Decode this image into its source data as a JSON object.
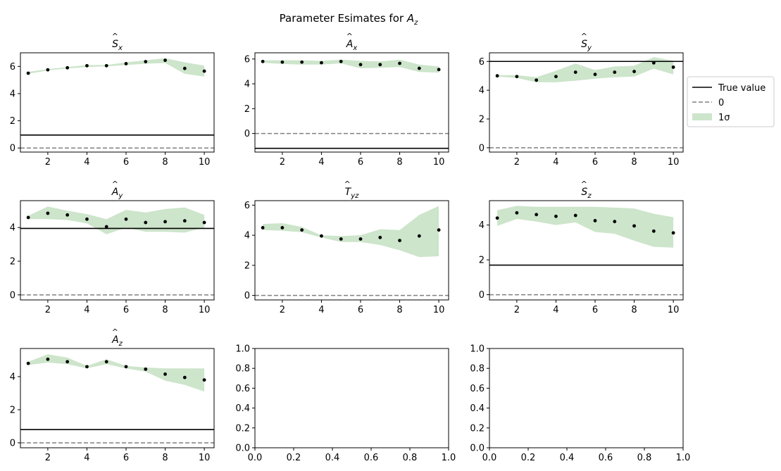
{
  "figure": {
    "title": "Parameter Esimates for Âz",
    "title_plain": "Parameter Esimates for ",
    "title_hat": "A",
    "title_sub": "z"
  },
  "legend": {
    "placement": "right",
    "entries": [
      {
        "label": "True value",
        "style": "solid",
        "color": "#000000"
      },
      {
        "label": "0",
        "style": "dashed",
        "color": "#808080"
      },
      {
        "label": "1σ",
        "style": "band",
        "color": "#cde5cb"
      }
    ]
  },
  "chart_data": [
    {
      "type": "scatter",
      "title": "Ŝx",
      "sym": "S",
      "sub": "x",
      "x": [
        1,
        2,
        3,
        4,
        5,
        6,
        7,
        8,
        9,
        10
      ],
      "y": [
        5.5,
        5.75,
        5.9,
        6.05,
        6.05,
        6.2,
        6.35,
        6.45,
        5.85,
        5.65
      ],
      "band_lower": [
        5.45,
        5.7,
        5.85,
        5.95,
        6.0,
        6.1,
        6.2,
        6.25,
        5.45,
        5.25
      ],
      "band_upper": [
        5.6,
        5.8,
        5.95,
        6.1,
        6.1,
        6.3,
        6.45,
        6.6,
        6.3,
        6.05
      ],
      "true_value": 0.95,
      "ylim": [
        -0.3,
        7.0
      ],
      "yticks": [
        0,
        2,
        4,
        6
      ],
      "xlim": [
        0.6,
        10.5
      ],
      "xticks": [
        2,
        4,
        6,
        8,
        10
      ]
    },
    {
      "type": "scatter",
      "title": "Âx",
      "sym": "A",
      "sub": "x",
      "x": [
        1,
        2,
        3,
        4,
        5,
        6,
        7,
        8,
        9,
        10
      ],
      "y": [
        5.8,
        5.75,
        5.75,
        5.7,
        5.8,
        5.55,
        5.55,
        5.65,
        5.25,
        5.15
      ],
      "band_lower": [
        5.7,
        5.6,
        5.55,
        5.55,
        5.65,
        5.25,
        5.3,
        5.35,
        4.95,
        4.9
      ],
      "band_upper": [
        5.9,
        5.9,
        5.9,
        5.85,
        5.95,
        5.85,
        5.8,
        5.95,
        5.55,
        5.4
      ],
      "true_value": -1.2,
      "ylim": [
        -1.5,
        6.5
      ],
      "yticks": [
        0,
        2,
        4,
        6
      ],
      "xlim": [
        0.6,
        10.5
      ],
      "xticks": [
        2,
        4,
        6,
        8,
        10
      ]
    },
    {
      "type": "scatter",
      "title": "Ŝy",
      "sym": "S",
      "sub": "y",
      "x": [
        1,
        2,
        3,
        4,
        5,
        6,
        7,
        8,
        9,
        10
      ],
      "y": [
        5.0,
        4.95,
        4.7,
        4.95,
        5.25,
        5.1,
        5.25,
        5.3,
        5.9,
        5.6
      ],
      "band_lower": [
        4.95,
        4.85,
        4.55,
        4.55,
        4.65,
        4.8,
        4.9,
        4.95,
        5.5,
        5.1
      ],
      "band_upper": [
        5.05,
        5.05,
        4.9,
        5.35,
        5.85,
        5.4,
        5.65,
        5.7,
        6.3,
        6.05
      ],
      "true_value": 6.0,
      "ylim": [
        -0.3,
        6.6
      ],
      "yticks": [
        0,
        2,
        4,
        6
      ],
      "xlim": [
        0.6,
        10.5
      ],
      "xticks": [
        2,
        4,
        6,
        8,
        10
      ]
    },
    {
      "type": "scatter",
      "title": "Ây",
      "sym": "A",
      "sub": "y",
      "x": [
        1,
        2,
        3,
        4,
        5,
        6,
        7,
        8,
        9,
        10
      ],
      "y": [
        4.6,
        4.85,
        4.75,
        4.5,
        4.05,
        4.5,
        4.3,
        4.35,
        4.4,
        4.3
      ],
      "band_lower": [
        4.5,
        4.5,
        4.45,
        4.25,
        3.6,
        4.0,
        3.75,
        3.75,
        3.7,
        4.0
      ],
      "band_upper": [
        4.7,
        5.25,
        5.0,
        4.8,
        4.5,
        5.05,
        4.9,
        5.1,
        5.2,
        4.75
      ],
      "true_value": 3.95,
      "ylim": [
        -0.3,
        5.6
      ],
      "yticks": [
        0,
        2,
        4
      ],
      "xlim": [
        0.6,
        10.5
      ],
      "xticks": [
        2,
        4,
        6,
        8,
        10
      ]
    },
    {
      "type": "scatter",
      "title": "T̂yz",
      "sym": "T",
      "sub": "yz",
      "x": [
        1,
        2,
        3,
        4,
        5,
        6,
        7,
        8,
        9,
        10
      ],
      "y": [
        4.5,
        4.5,
        4.35,
        3.95,
        3.75,
        3.75,
        3.85,
        3.65,
        3.95,
        4.35
      ],
      "band_lower": [
        4.35,
        4.3,
        4.2,
        3.85,
        3.55,
        3.55,
        3.35,
        3.0,
        2.55,
        2.6
      ],
      "band_upper": [
        4.75,
        4.8,
        4.55,
        4.0,
        3.95,
        4.0,
        4.4,
        4.35,
        5.35,
        5.95
      ],
      "true_value": null,
      "ylim": [
        -0.3,
        6.3
      ],
      "yticks": [
        0,
        2,
        4,
        6
      ],
      "xlim": [
        0.6,
        10.5
      ],
      "xticks": [
        2,
        4,
        6,
        8,
        10
      ]
    },
    {
      "type": "scatter",
      "title": "Ŝz",
      "sym": "S",
      "sub": "z",
      "x": [
        1,
        2,
        3,
        4,
        5,
        6,
        7,
        8,
        9,
        10
      ],
      "y": [
        4.4,
        4.7,
        4.6,
        4.5,
        4.55,
        4.25,
        4.2,
        3.95,
        3.65,
        3.55
      ],
      "band_lower": [
        3.95,
        4.35,
        4.2,
        4.0,
        4.15,
        3.6,
        3.5,
        3.1,
        2.75,
        2.7
      ],
      "band_upper": [
        4.85,
        5.1,
        5.05,
        5.05,
        5.05,
        5.05,
        5.0,
        4.95,
        4.65,
        4.45
      ],
      "true_value": 1.7,
      "ylim": [
        -0.3,
        5.4
      ],
      "yticks": [
        0,
        2,
        4
      ],
      "xlim": [
        0.6,
        10.5
      ],
      "xticks": [
        2,
        4,
        6,
        8,
        10
      ]
    },
    {
      "type": "scatter",
      "title": "Âz",
      "sym": "A",
      "sub": "z",
      "x": [
        1,
        2,
        3,
        4,
        5,
        6,
        7,
        8,
        9,
        10
      ],
      "y": [
        4.8,
        5.05,
        4.9,
        4.6,
        4.9,
        4.6,
        4.45,
        4.15,
        3.95,
        3.8
      ],
      "band_lower": [
        4.7,
        4.85,
        4.75,
        4.5,
        4.75,
        4.5,
        4.3,
        3.75,
        3.5,
        3.1
      ],
      "band_upper": [
        4.9,
        5.35,
        5.15,
        4.65,
        5.05,
        4.65,
        4.55,
        4.5,
        4.5,
        4.5
      ],
      "true_value": 0.8,
      "ylim": [
        -0.3,
        5.7
      ],
      "yticks": [
        0,
        2,
        4
      ],
      "xlim": [
        0.6,
        10.5
      ],
      "xticks": [
        2,
        4,
        6,
        8,
        10
      ]
    },
    {
      "type": "empty",
      "title": "",
      "xlim": [
        0,
        1
      ],
      "ylim": [
        0,
        1
      ],
      "xticks": [
        0.0,
        0.2,
        0.4,
        0.6,
        0.8,
        1.0
      ],
      "yticks": [
        0.0,
        0.2,
        0.4,
        0.6,
        0.8,
        1.0
      ],
      "xtick_labels": [
        "0.0",
        "0.2",
        "0.4",
        "0.6",
        "0.8",
        "1.0"
      ],
      "ytick_labels": [
        "0.0",
        "0.2",
        "0.4",
        "0.6",
        "0.8",
        "1.0"
      ]
    },
    {
      "type": "empty",
      "title": "",
      "xlim": [
        0,
        1
      ],
      "ylim": [
        0,
        1
      ],
      "xticks": [
        0.0,
        0.2,
        0.4,
        0.6,
        0.8,
        1.0
      ],
      "yticks": [
        0.0,
        0.2,
        0.4,
        0.6,
        0.8,
        1.0
      ],
      "xtick_labels": [
        "0.0",
        "0.2",
        "0.4",
        "0.6",
        "0.8",
        "1.0"
      ],
      "ytick_labels": [
        "0.0",
        "0.2",
        "0.4",
        "0.6",
        "0.8",
        "1.0"
      ]
    }
  ]
}
